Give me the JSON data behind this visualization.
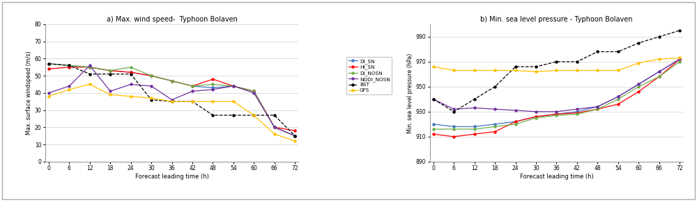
{
  "x": [
    0,
    6,
    12,
    18,
    24,
    30,
    36,
    42,
    48,
    54,
    60,
    66,
    72
  ],
  "wind": {
    "DI_SN": [
      57,
      56,
      55,
      53,
      52,
      50,
      47,
      44,
      43,
      44,
      41,
      20,
      15
    ],
    "HI_SN": [
      54,
      55,
      55,
      53,
      52,
      50,
      47,
      44,
      48,
      44,
      41,
      20,
      18
    ],
    "DI_NOSN": [
      57,
      56,
      55,
      53,
      55,
      50,
      47,
      44,
      45,
      44,
      41,
      20,
      15
    ],
    "NODI_NOSN": [
      40,
      44,
      56,
      41,
      45,
      44,
      36,
      41,
      42,
      44,
      40,
      20,
      15
    ],
    "BST": [
      57,
      56,
      51,
      51,
      51,
      36,
      35,
      35,
      27,
      27,
      27,
      27,
      15
    ],
    "GFS": [
      38,
      42,
      45,
      39,
      38,
      37,
      35,
      35,
      35,
      35,
      27,
      16,
      12
    ]
  },
  "pressure": {
    "DI_SN": [
      920,
      918,
      918,
      920,
      922,
      926,
      928,
      930,
      934,
      942,
      952,
      962,
      972
    ],
    "HI_SN": [
      912,
      910,
      912,
      914,
      922,
      926,
      928,
      929,
      932,
      936,
      946,
      958,
      972
    ],
    "DI_NOSN": [
      916,
      916,
      916,
      918,
      920,
      925,
      927,
      928,
      932,
      940,
      950,
      958,
      970
    ],
    "NODI_NOSN": [
      940,
      932,
      933,
      932,
      931,
      930,
      930,
      932,
      934,
      942,
      952,
      962,
      972
    ],
    "BST": [
      940,
      930,
      940,
      950,
      966,
      966,
      970,
      970,
      978,
      978,
      985,
      990,
      995
    ],
    "GFS": [
      966,
      963,
      963,
      963,
      963,
      962,
      963,
      963,
      963,
      963,
      969,
      972,
      973
    ]
  },
  "colors": {
    "DI_SN": "#4472c4",
    "HI_SN": "#ff0000",
    "DI_NOSN": "#70ad47",
    "NODI_NOSN": "#7030a0",
    "BST": "#000000",
    "GFS": "#ffc000"
  },
  "linestyles": {
    "DI_SN": "-",
    "HI_SN": "-",
    "DI_NOSN": "-",
    "NODI_NOSN": "-",
    "BST": "--",
    "GFS": "-"
  },
  "series_keys": [
    "DI_SN",
    "HI_SN",
    "DI_NOSN",
    "NODI_NOSN",
    "BST",
    "GFS"
  ],
  "title_left": "a) Max. wind speed-  Typhoon Bolaven",
  "title_right": "b) Min. sea level pressure - Typhoon Bolaven",
  "ylabel_left": "Max. surface windspeed (m/s)",
  "ylabel_right": "Min. sea level pressure (hPa)",
  "xlabel": "Forecast leading time (h)",
  "ylim_left": [
    0,
    80
  ],
  "ylim_right": [
    890,
    1000
  ],
  "yticks_left": [
    0,
    10,
    20,
    30,
    40,
    50,
    60,
    70,
    80
  ],
  "yticks_right": [
    890,
    910,
    930,
    950,
    970,
    990
  ],
  "background": "#ffffff",
  "border_color": "#bbbbbb"
}
